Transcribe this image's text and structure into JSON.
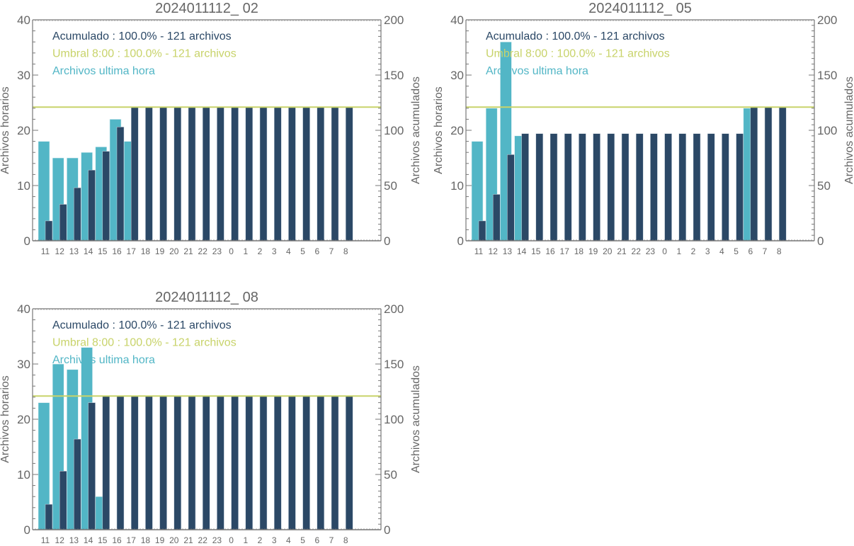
{
  "colors": {
    "hourly": "#52b6c6",
    "cumulative": "#2b4866",
    "threshold": "#c8d36a",
    "axis": "#777777",
    "text": "#666666"
  },
  "chart_data": [
    {
      "type": "bar",
      "title": "2024011112_ 02",
      "ylabel": "Archivos horarios",
      "y2label": "Archivos acumulados",
      "ylim": [
        0,
        40
      ],
      "y2lim": [
        0,
        200
      ],
      "yticks": [
        "0",
        "10",
        "20",
        "30",
        "40"
      ],
      "y2ticks": [
        "0",
        "50",
        "100",
        "150",
        "200"
      ],
      "categories": [
        "11",
        "12",
        "13",
        "14",
        "15",
        "16",
        "17",
        "18",
        "19",
        "20",
        "21",
        "22",
        "23",
        "0",
        "1",
        "2",
        "3",
        "4",
        "5",
        "6",
        "7",
        "8"
      ],
      "legend": [
        {
          "label": "Acumulado : 100.0% - 121 archivos",
          "color_key": "cumulative"
        },
        {
          "label": "Umbral 8:00 : 100.0% - 121 archivos",
          "color_key": "threshold"
        },
        {
          "label": "Archivos ultima hora",
          "color_key": "hourly"
        }
      ],
      "legend_position": "top-left",
      "threshold": 121,
      "series": [
        {
          "name": "Archivos ultima hora",
          "axis": "left",
          "values": [
            18,
            15,
            15,
            16,
            17,
            22,
            18,
            0,
            0,
            0,
            0,
            0,
            0,
            0,
            0,
            0,
            0,
            0,
            0,
            0,
            0,
            0
          ]
        },
        {
          "name": "Acumulado",
          "axis": "right",
          "values": [
            18,
            33,
            48,
            64,
            81,
            103,
            121,
            121,
            121,
            121,
            121,
            121,
            121,
            121,
            121,
            121,
            121,
            121,
            121,
            121,
            121,
            121
          ]
        }
      ]
    },
    {
      "type": "bar",
      "title": "2024011112_ 05",
      "ylabel": "Archivos horarios",
      "y2label": "Archivos acumulados",
      "ylim": [
        0,
        40
      ],
      "y2lim": [
        0,
        200
      ],
      "yticks": [
        "0",
        "10",
        "20",
        "30",
        "40"
      ],
      "y2ticks": [
        "0",
        "50",
        "100",
        "150",
        "200"
      ],
      "categories": [
        "11",
        "12",
        "13",
        "14",
        "15",
        "16",
        "17",
        "18",
        "19",
        "20",
        "21",
        "22",
        "23",
        "0",
        "1",
        "2",
        "3",
        "4",
        "5",
        "6",
        "7",
        "8"
      ],
      "legend": [
        {
          "label": "Acumulado : 100.0% - 121 archivos",
          "color_key": "cumulative"
        },
        {
          "label": "Umbral 8:00 : 100.0% - 121 archivos",
          "color_key": "threshold"
        },
        {
          "label": "Archivos ultima hora",
          "color_key": "hourly"
        }
      ],
      "legend_position": "top-left",
      "threshold": 121,
      "series": [
        {
          "name": "Archivos ultima hora",
          "axis": "left",
          "values": [
            18,
            24,
            36,
            19,
            0,
            0,
            0,
            0,
            0,
            0,
            0,
            0,
            0,
            0,
            0,
            0,
            0,
            0,
            0,
            24,
            0,
            0
          ]
        },
        {
          "name": "Acumulado",
          "axis": "right",
          "values": [
            18,
            42,
            78,
            97,
            97,
            97,
            97,
            97,
            97,
            97,
            97,
            97,
            97,
            97,
            97,
            97,
            97,
            97,
            97,
            121,
            121,
            121
          ]
        }
      ]
    },
    {
      "type": "bar",
      "title": "2024011112_ 08",
      "ylabel": "Archivos horarios",
      "y2label": "Archivos acumulados",
      "ylim": [
        0,
        40
      ],
      "y2lim": [
        0,
        200
      ],
      "yticks": [
        "0",
        "10",
        "20",
        "30",
        "40"
      ],
      "y2ticks": [
        "0",
        "50",
        "100",
        "150",
        "200"
      ],
      "categories": [
        "11",
        "12",
        "13",
        "14",
        "15",
        "16",
        "17",
        "18",
        "19",
        "20",
        "21",
        "22",
        "23",
        "0",
        "1",
        "2",
        "3",
        "4",
        "5",
        "6",
        "7",
        "8"
      ],
      "legend": [
        {
          "label": "Acumulado : 100.0% - 121 archivos",
          "color_key": "cumulative"
        },
        {
          "label": "Umbral 8:00 : 100.0% - 121 archivos",
          "color_key": "threshold"
        },
        {
          "label": "Archivos ultima hora",
          "color_key": "hourly"
        }
      ],
      "legend_position": "top-left",
      "threshold": 121,
      "series": [
        {
          "name": "Archivos ultima hora",
          "axis": "left",
          "values": [
            23,
            30,
            29,
            33,
            6,
            0,
            0,
            0,
            0,
            0,
            0,
            0,
            0,
            0,
            0,
            0,
            0,
            0,
            0,
            0,
            0,
            0
          ]
        },
        {
          "name": "Acumulado",
          "axis": "right",
          "values": [
            23,
            53,
            82,
            115,
            121,
            121,
            121,
            121,
            121,
            121,
            121,
            121,
            121,
            121,
            121,
            121,
            121,
            121,
            121,
            121,
            121,
            121
          ]
        }
      ]
    }
  ]
}
